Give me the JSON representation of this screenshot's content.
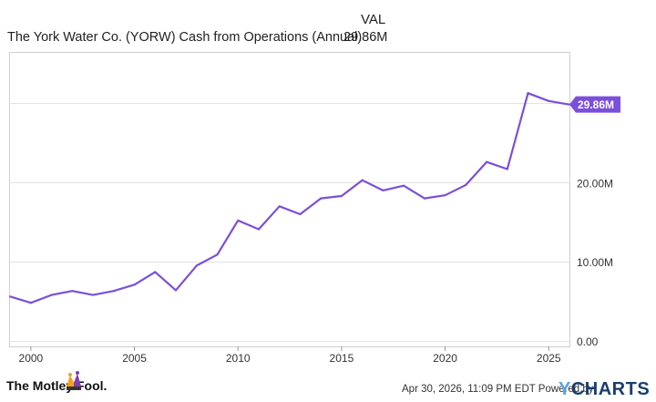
{
  "header": {
    "column_label": "VAL",
    "series_title": "The York Water Co. (YORW) Cash from Operations (Annual)",
    "series_value": "29.86M"
  },
  "colors": {
    "line": "#7b4fd9",
    "grid": "#e3e3e3",
    "border": "#cfcfcf",
    "badge_bg": "#7b4fd9",
    "badge_text": "#ffffff"
  },
  "chart_data": {
    "type": "line",
    "series": [
      {
        "name": "The York Water Co. (YORW) Cash from Operations (Annual)",
        "x": [
          1999,
          2000,
          2001,
          2002,
          2003,
          2004,
          2005,
          2006,
          2007,
          2008,
          2009,
          2010,
          2011,
          2012,
          2013,
          2014,
          2015,
          2016,
          2017,
          2018,
          2019,
          2020,
          2021,
          2022,
          2023,
          2024,
          2025,
          2026
        ],
        "values": [
          5.6,
          4.8,
          5.8,
          6.3,
          5.8,
          6.3,
          7.1,
          8.7,
          6.4,
          9.5,
          10.9,
          15.2,
          14.1,
          17.0,
          16.0,
          18.0,
          18.3,
          20.3,
          19.0,
          19.6,
          18.0,
          18.4,
          19.7,
          22.6,
          21.7,
          31.3,
          30.3,
          29.86
        ]
      }
    ],
    "x_ticks": [
      "2000",
      "2005",
      "2010",
      "2015",
      "2020",
      "2025"
    ],
    "x_tick_values": [
      2000,
      2005,
      2010,
      2015,
      2020,
      2025
    ],
    "y_ticks": [
      "0.00",
      "10.00M",
      "20.00M"
    ],
    "y_tick_values": [
      0,
      10,
      20
    ],
    "xlim": [
      1998.95,
      2026.0
    ],
    "ylim": [
      -0.7,
      36.5
    ],
    "last_value_label": "29.86M",
    "grid": true
  },
  "footer": {
    "brand_left": "The Motley Fool.",
    "timestamp": "Apr 30, 2026, 11:09 PM EDT  Powered by",
    "brand_right_y": "Y",
    "brand_right_rest": "CHARTS"
  }
}
